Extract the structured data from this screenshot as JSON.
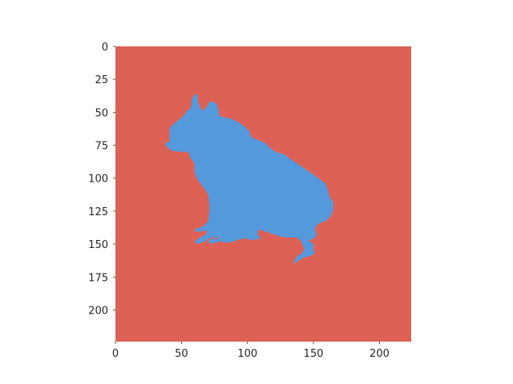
{
  "chart_data": {
    "type": "heatmap",
    "title": "",
    "xlabel": "",
    "ylabel": "",
    "image_size": [
      224,
      224
    ],
    "xlim": [
      0,
      224
    ],
    "ylim": [
      224,
      0
    ],
    "y_inverted": true,
    "x_ticks": [
      0,
      50,
      100,
      150,
      200
    ],
    "y_ticks": [
      0,
      25,
      50,
      75,
      100,
      125,
      150,
      175,
      200
    ],
    "grid": false,
    "legend": "none",
    "classes": [
      {
        "name": "background",
        "color": "#dd6155"
      },
      {
        "name": "foreground",
        "color": "#5599dd"
      }
    ],
    "mask_outline": [
      [
        60,
        36
      ],
      [
        62,
        37
      ],
      [
        63,
        44
      ],
      [
        66,
        49
      ],
      [
        69,
        46
      ],
      [
        71,
        42
      ],
      [
        74,
        42
      ],
      [
        77,
        44
      ],
      [
        79,
        53
      ],
      [
        88,
        55
      ],
      [
        94,
        58
      ],
      [
        98,
        61
      ],
      [
        101,
        64
      ],
      [
        103,
        69
      ],
      [
        108,
        71
      ],
      [
        113,
        73
      ],
      [
        117,
        77
      ],
      [
        121,
        80
      ],
      [
        128,
        82
      ],
      [
        132,
        85
      ],
      [
        138,
        89
      ],
      [
        145,
        94
      ],
      [
        151,
        98
      ],
      [
        155,
        101
      ],
      [
        159,
        104
      ],
      [
        161,
        109
      ],
      [
        162,
        114
      ],
      [
        165,
        118
      ],
      [
        165,
        124
      ],
      [
        163,
        129
      ],
      [
        160,
        132
      ],
      [
        155,
        134
      ],
      [
        152,
        136
      ],
      [
        151,
        139
      ],
      [
        152,
        141
      ],
      [
        152,
        144
      ],
      [
        150,
        146
      ],
      [
        146,
        147
      ],
      [
        150,
        150
      ],
      [
        150,
        154
      ],
      [
        151,
        157
      ],
      [
        148,
        159
      ],
      [
        143,
        160
      ],
      [
        138,
        163
      ],
      [
        134,
        165
      ],
      [
        137,
        160
      ],
      [
        141,
        157
      ],
      [
        143,
        154
      ],
      [
        142,
        151
      ],
      [
        140,
        147
      ],
      [
        137,
        145
      ],
      [
        130,
        145
      ],
      [
        124,
        144
      ],
      [
        118,
        142
      ],
      [
        112,
        140
      ],
      [
        108,
        139
      ],
      [
        108,
        143
      ],
      [
        110,
        145
      ],
      [
        109,
        146
      ],
      [
        104,
        147
      ],
      [
        100,
        146
      ],
      [
        95,
        146
      ],
      [
        90,
        148
      ],
      [
        84,
        149
      ],
      [
        80,
        148
      ],
      [
        75,
        149
      ],
      [
        73,
        150
      ],
      [
        70,
        148
      ],
      [
        72,
        146
      ],
      [
        77,
        146
      ],
      [
        80,
        145
      ],
      [
        75,
        145
      ],
      [
        73,
        145
      ],
      [
        70,
        146
      ],
      [
        68,
        148
      ],
      [
        65,
        149
      ],
      [
        62,
        150
      ],
      [
        60,
        148
      ],
      [
        64,
        145
      ],
      [
        68,
        143
      ],
      [
        70,
        140
      ],
      [
        66,
        140
      ],
      [
        62,
        141
      ],
      [
        59,
        139
      ],
      [
        63,
        138
      ],
      [
        67,
        136
      ],
      [
        70,
        133
      ],
      [
        71,
        126
      ],
      [
        71,
        119
      ],
      [
        70,
        112
      ],
      [
        66,
        106
      ],
      [
        62,
        101
      ],
      [
        60,
        96
      ],
      [
        60,
        89
      ],
      [
        57,
        85
      ],
      [
        55,
        80
      ],
      [
        48,
        80
      ],
      [
        42,
        79
      ],
      [
        39,
        76
      ],
      [
        37,
        74
      ],
      [
        41,
        72
      ],
      [
        41,
        66
      ],
      [
        41,
        62
      ],
      [
        45,
        58
      ],
      [
        49,
        55
      ],
      [
        52,
        52
      ],
      [
        54,
        49
      ],
      [
        57,
        47
      ],
      [
        58,
        40
      ]
    ],
    "mask_islands": [
      [
        [
          79,
          124
        ],
        [
          80,
          121
        ],
        [
          83,
          121
        ],
        [
          82,
          125
        ],
        [
          79,
          125
        ]
      ]
    ]
  }
}
